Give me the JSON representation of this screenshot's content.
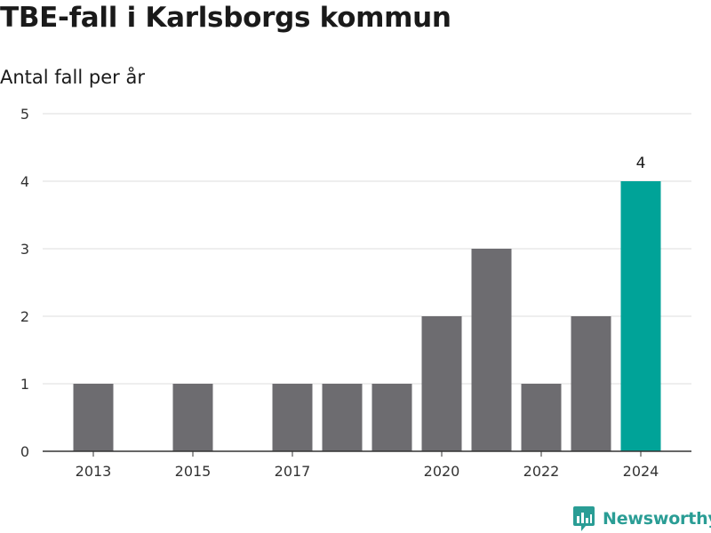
{
  "header": {
    "title": "TBE-fall i Karlsborgs kommun",
    "subtitle": "Antal fall per år"
  },
  "branding": {
    "logo_text": "Newsworthy",
    "logo_icon": "bar-chart-speech-bubble-icon",
    "logo_color": "#2a9d95"
  },
  "chart_data": {
    "type": "bar",
    "title": "TBE-fall i Karlsborgs kommun",
    "subtitle": "Antal fall per år",
    "xlabel": "",
    "ylabel": "",
    "categories": [
      "2013",
      "2014",
      "2015",
      "2016",
      "2017",
      "2018",
      "2019",
      "2020",
      "2021",
      "2022",
      "2023",
      "2024"
    ],
    "values": [
      1,
      0,
      1,
      0,
      1,
      1,
      1,
      2,
      3,
      1,
      2,
      4
    ],
    "x_tick_labels": [
      "2013",
      "2015",
      "2017",
      "2020",
      "2022",
      "2024"
    ],
    "y_ticks": [
      0,
      1,
      2,
      3,
      4,
      5
    ],
    "ylim": [
      0,
      5
    ],
    "grid": true,
    "highlight_category": "2024",
    "highlight_label": "4",
    "colors": {
      "bar": "#6d6c70",
      "highlight": "#00a398",
      "grid": "#dddddd",
      "axis": "#333333"
    }
  }
}
